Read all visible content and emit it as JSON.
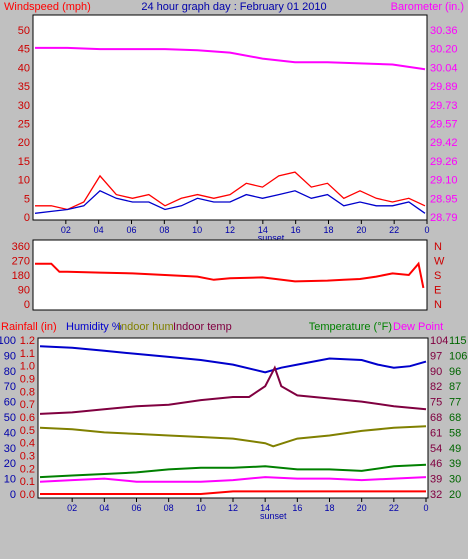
{
  "header": {
    "title": "24 hour graph day : February 01 2010",
    "left_label": "Windspeed (mph)",
    "right_label": "Barometer (in.)"
  },
  "colors": {
    "background": "#c0c0c0",
    "plot_bg": "#ffffff",
    "wind": "#ff0000",
    "wind_avg": "#0000cc",
    "barometer": "#ff00ff",
    "direction": "#ff0000",
    "rain": "#ff0000",
    "humidity": "#0000cc",
    "indoor_hum": "#808000",
    "indoor_temp": "#800040",
    "temperature": "#008000",
    "dew_point": "#ff00ff",
    "axis_text_red": "#cc0000",
    "axis_text_blue": "#0000aa",
    "axis_text_green": "#006600"
  },
  "chart_data": [
    {
      "type": "line",
      "title": "24 hour graph day : February 01 2010",
      "x_ticks": [
        "02",
        "04",
        "06",
        "08",
        "10",
        "12",
        "14",
        "16",
        "18",
        "20",
        "22",
        "0"
      ],
      "x_marker": "sunset",
      "y_left": {
        "label": "Windspeed (mph)",
        "ticks": [
          "50",
          "45",
          "40",
          "35",
          "30",
          "25",
          "20",
          "15",
          "10",
          "5",
          "0"
        ],
        "ylim": [
          0,
          50
        ]
      },
      "y_right": {
        "label": "Barometer (in.)",
        "ticks": [
          "30.36",
          "30.20",
          "30.04",
          "29.89",
          "29.73",
          "29.57",
          "29.42",
          "29.26",
          "29.10",
          "28.95",
          "28.79"
        ],
        "ylim": [
          28.79,
          30.36
        ]
      },
      "series": [
        {
          "name": "Wind gust",
          "axis": "left",
          "color": "#ff0000",
          "x": [
            0,
            1,
            2,
            3,
            4,
            5,
            6,
            7,
            8,
            9,
            10,
            11,
            12,
            13,
            14,
            15,
            16,
            17,
            18,
            19,
            20,
            21,
            22,
            23,
            24
          ],
          "y": [
            3,
            3,
            2,
            4,
            11,
            6,
            5,
            6,
            3,
            5,
            6,
            5,
            6,
            9,
            8,
            11,
            12,
            8,
            9,
            5,
            7,
            5,
            4,
            5,
            3
          ]
        },
        {
          "name": "Wind average",
          "axis": "left",
          "color": "#0000cc",
          "x": [
            0,
            1,
            2,
            3,
            4,
            5,
            6,
            7,
            8,
            9,
            10,
            11,
            12,
            13,
            14,
            15,
            16,
            17,
            18,
            19,
            20,
            21,
            22,
            23,
            24
          ],
          "y": [
            1,
            1.5,
            2,
            3,
            7,
            5,
            4,
            4,
            2,
            3,
            5,
            4,
            4,
            6,
            5,
            6,
            7,
            5,
            6,
            3,
            4,
            3,
            3,
            4,
            1
          ]
        },
        {
          "name": "Barometer",
          "axis": "right",
          "color": "#ff00ff",
          "x": [
            0,
            2,
            4,
            6,
            8,
            10,
            12,
            14,
            16,
            18,
            20,
            22,
            24
          ],
          "y": [
            30.21,
            30.21,
            30.2,
            30.2,
            30.2,
            30.19,
            30.17,
            30.12,
            30.09,
            30.09,
            30.08,
            30.07,
            30.03
          ]
        }
      ]
    },
    {
      "type": "line",
      "y_left": {
        "ticks": [
          "360",
          "270",
          "180",
          "90",
          "0"
        ],
        "ylim": [
          0,
          360
        ]
      },
      "y_right": {
        "ticks": [
          "N",
          "W",
          "S",
          "E",
          "N"
        ]
      },
      "series": [
        {
          "name": "Wind direction",
          "color": "#ff0000",
          "x": [
            0,
            1,
            1.5,
            2,
            4,
            6,
            8,
            10,
            11,
            12,
            14,
            16,
            18,
            19,
            20,
            21,
            22,
            23,
            23.6,
            23.9
          ],
          "y": [
            250,
            250,
            200,
            200,
            195,
            190,
            180,
            170,
            150,
            160,
            165,
            140,
            145,
            150,
            155,
            170,
            190,
            180,
            250,
            100
          ]
        }
      ]
    },
    {
      "type": "line",
      "labels": {
        "rainfall": "Rainfall (in)",
        "humidity": "Humidity %",
        "indoor_hum": "Indoor hum",
        "indoor_temp": "Indoor temp",
        "temperature": "Temperature (°F)",
        "dew_point": "Dew Point"
      },
      "x_ticks": [
        "02",
        "04",
        "06",
        "08",
        "10",
        "12",
        "14",
        "16",
        "18",
        "20",
        "22",
        "0"
      ],
      "x_marker": "sunset",
      "y_rain_ticks": [
        "1.2",
        "1.1",
        "1.0",
        "0.9",
        "0.8",
        "0.7",
        "0.6",
        "0.5",
        "0.4",
        "0.3",
        "0.2",
        "0.1",
        "0.0"
      ],
      "y_hum_ticks": [
        "100",
        "90",
        "80",
        "70",
        "60",
        "50",
        "40",
        "30",
        "20",
        "10",
        "0"
      ],
      "y_indoor_temp_ticks": [
        "104",
        "97",
        "90",
        "82",
        "75",
        "68",
        "61",
        "54",
        "46",
        "39",
        "32"
      ],
      "y_temp_ticks": [
        "115",
        "106",
        "96",
        "87",
        "77",
        "68",
        "58",
        "49",
        "39",
        "30",
        "20"
      ],
      "y_hum_lim": [
        0,
        100
      ],
      "series": [
        {
          "name": "Humidity %",
          "color": "#0000cc",
          "x": [
            0,
            2,
            4,
            6,
            8,
            10,
            12,
            14,
            15,
            16,
            18,
            20,
            21,
            22,
            23,
            24
          ],
          "y": [
            96,
            95,
            93,
            91,
            89,
            87,
            84,
            79,
            82,
            84,
            88,
            87,
            84,
            82,
            83,
            86
          ]
        },
        {
          "name": "Indoor temp",
          "color": "#800040",
          "x": [
            0,
            2,
            4,
            6,
            8,
            10,
            12,
            13,
            14,
            14.6,
            15,
            16,
            18,
            20,
            22,
            24
          ],
          "y": [
            52,
            53,
            55,
            57,
            58,
            61,
            63,
            63,
            70,
            82,
            70,
            64,
            62,
            60,
            57,
            55
          ]
        },
        {
          "name": "Indoor hum",
          "color": "#808000",
          "x": [
            0,
            2,
            4,
            6,
            8,
            10,
            12,
            14,
            14.5,
            16,
            18,
            20,
            22,
            24
          ],
          "y": [
            43,
            42,
            40,
            39,
            38,
            37,
            36,
            33,
            31,
            36,
            38,
            41,
            43,
            44
          ]
        },
        {
          "name": "Temperature",
          "color": "#008000",
          "x": [
            0,
            2,
            4,
            6,
            8,
            10,
            12,
            14,
            16,
            18,
            20,
            22,
            24
          ],
          "y": [
            11,
            12,
            13,
            14,
            16,
            17,
            17,
            18,
            16,
            16,
            15,
            18,
            19
          ]
        },
        {
          "name": "Dew Point",
          "color": "#ff00ff",
          "x": [
            0,
            2,
            4,
            6,
            8,
            10,
            12,
            14,
            16,
            18,
            20,
            22,
            24
          ],
          "y": [
            8,
            9,
            10,
            8,
            8,
            8,
            9,
            11,
            10,
            10,
            9,
            10,
            11
          ]
        },
        {
          "name": "Rainfall",
          "color": "#ff0000",
          "x": [
            0,
            5,
            10,
            12,
            16,
            20,
            22,
            24
          ],
          "y": [
            0.0,
            0.0,
            0.0,
            0.02,
            0.02,
            0.02,
            0.02,
            0.02
          ]
        }
      ]
    }
  ]
}
